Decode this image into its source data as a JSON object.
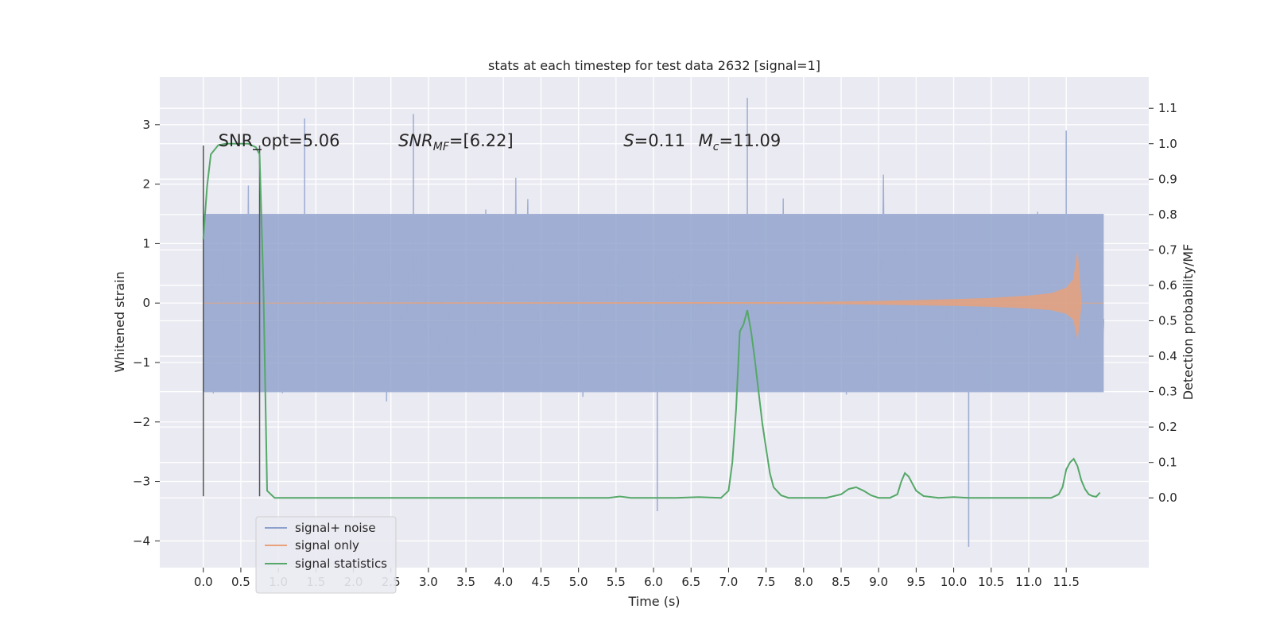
{
  "chart_data": {
    "type": "line",
    "title": "stats at each timestep for test data 2632 [signal=1]",
    "xlabel": "Time (s)",
    "ylabel_left": "Whitened strain",
    "ylabel_right": "Detection probability/MF",
    "xlim": [
      -0.58,
      12.6
    ],
    "ylim_left": [
      -4.45,
      3.8
    ],
    "ylim_right": [
      -0.197,
      1.188
    ],
    "x_ticks": [
      "0.0",
      "0.5",
      "1.0",
      "1.5",
      "2.0",
      "2.5",
      "3.0",
      "3.5",
      "4.0",
      "4.5",
      "5.0",
      "5.5",
      "6.0",
      "6.5",
      "7.0",
      "7.5",
      "8.0",
      "8.5",
      "9.0",
      "9.5",
      "10.0",
      "10.5",
      "11.0",
      "11.5"
    ],
    "y_ticks_left": [
      "−4",
      "−3",
      "−2",
      "−1",
      "0",
      "1",
      "2",
      "3"
    ],
    "y_ticks_right": [
      "0.0",
      "0.1",
      "0.2",
      "0.3",
      "0.4",
      "0.5",
      "0.6",
      "0.7",
      "0.8",
      "0.9",
      "1.0",
      "1.1"
    ],
    "grid": true,
    "legend_position": "lower-left",
    "annotations": [
      {
        "text": "SNR_opt=5.06",
        "x": 0.2
      },
      {
        "text": "SNR",
        "sub": "MF",
        "rest": "=[6.22]",
        "x": 2.6
      },
      {
        "text": "S",
        "rest": "=0.11",
        "x": 5.6
      },
      {
        "text": "M",
        "sub": "c",
        "rest": "=11.09",
        "x": 6.6
      }
    ],
    "vlines": [
      {
        "x": 0.0,
        "ymin": -3.25,
        "ymax": 2.65
      },
      {
        "x": 0.75,
        "ymin": -3.25,
        "ymax": 2.65
      }
    ],
    "strain_envelope": {
      "signal_noise": {
        "x": [
          0.0,
          12.0
        ],
        "core_band": [
          -1.5,
          1.5
        ],
        "max_positive": 3.45,
        "max_negative": -4.1
      },
      "signal_only": {
        "x": [
          0.0,
          8.0,
          9.0,
          10.0,
          10.5,
          11.0,
          11.3,
          11.5,
          11.6,
          11.65,
          11.7,
          12.0
        ],
        "amplitude": [
          0.0,
          0.01,
          0.03,
          0.06,
          0.08,
          0.12,
          0.16,
          0.25,
          0.4,
          0.85,
          0.0,
          0.0
        ]
      }
    },
    "series": [
      {
        "name": "signal+ noise",
        "color": "#8da0cb",
        "axis": "left"
      },
      {
        "name": "signal only",
        "color": "#e8a27c",
        "axis": "left"
      },
      {
        "name": "signal statistics",
        "color": "#55a868",
        "axis": "right",
        "x": [
          0.0,
          0.05,
          0.1,
          0.2,
          0.3,
          0.4,
          0.5,
          0.6,
          0.7,
          0.75,
          0.8,
          0.85,
          0.95,
          1.5,
          2.5,
          3.5,
          4.5,
          5.4,
          5.55,
          5.7,
          6.0,
          6.3,
          6.6,
          6.9,
          7.0,
          7.05,
          7.1,
          7.15,
          7.2,
          7.25,
          7.3,
          7.35,
          7.4,
          7.45,
          7.5,
          7.55,
          7.6,
          7.7,
          7.8,
          8.0,
          8.3,
          8.5,
          8.6,
          8.7,
          8.8,
          8.9,
          9.0,
          9.15,
          9.25,
          9.3,
          9.35,
          9.4,
          9.5,
          9.6,
          9.8,
          10.0,
          10.2,
          10.5,
          11.0,
          11.3,
          11.4,
          11.45,
          11.5,
          11.55,
          11.6,
          11.65,
          11.7,
          11.75,
          11.8,
          11.85,
          11.9,
          11.95
        ],
        "y": [
          0.73,
          0.88,
          0.97,
          0.996,
          1.0,
          1.0,
          1.0,
          1.0,
          0.99,
          0.97,
          0.6,
          0.02,
          0.0,
          0.0,
          0.0,
          0.0,
          0.0,
          0.0,
          0.004,
          0.0,
          0.0,
          0.0,
          0.002,
          0.0,
          0.02,
          0.1,
          0.25,
          0.47,
          0.49,
          0.53,
          0.47,
          0.39,
          0.3,
          0.21,
          0.14,
          0.07,
          0.03,
          0.007,
          0.0,
          0.0,
          0.0,
          0.01,
          0.025,
          0.03,
          0.02,
          0.007,
          0.0,
          0.0,
          0.01,
          0.045,
          0.07,
          0.06,
          0.02,
          0.005,
          0.0,
          0.002,
          0.0,
          0.0,
          0.0,
          0.0,
          0.01,
          0.03,
          0.08,
          0.1,
          0.11,
          0.09,
          0.05,
          0.025,
          0.01,
          0.005,
          0.003,
          0.015
        ]
      }
    ]
  }
}
